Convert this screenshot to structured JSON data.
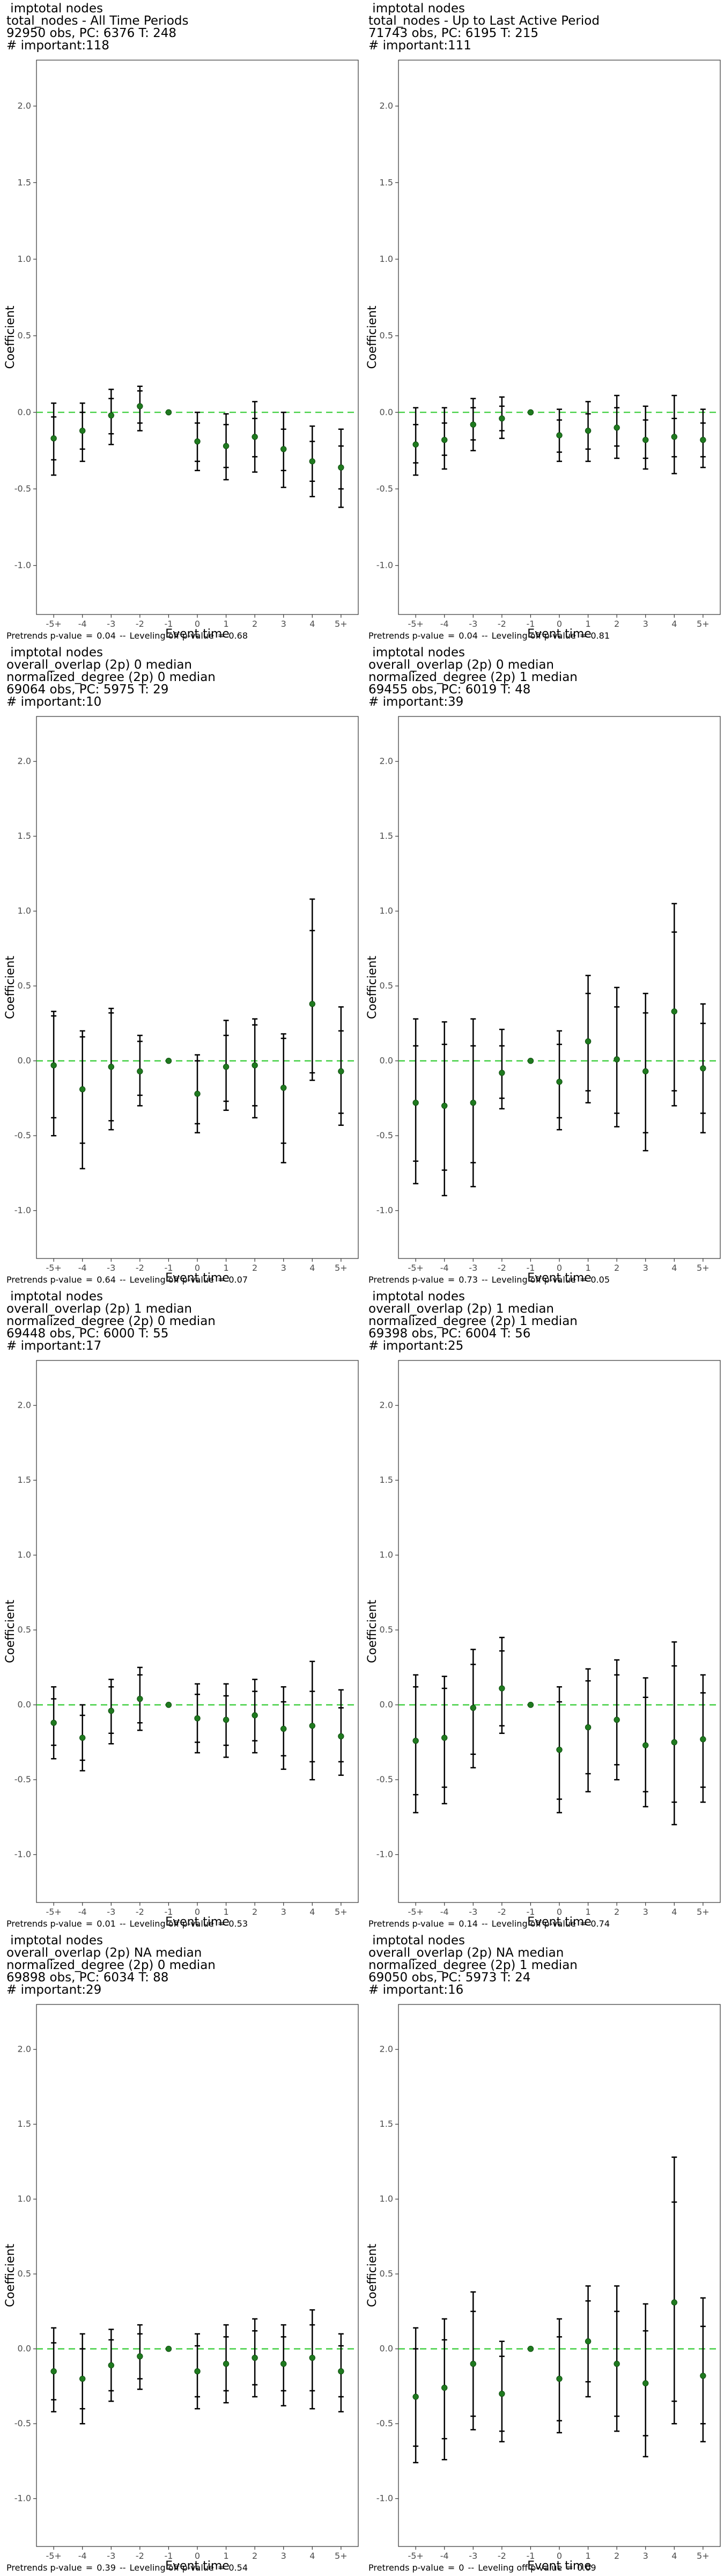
{
  "chart_data": [
    {
      "type": "scatter",
      "title_lines": [
        " imptotal nodes",
        "total_nodes - All Time Periods",
        "92950 obs, PC: 6376 T: 248",
        "# important:118"
      ],
      "xlabel": "Event time",
      "ylabel": "Coefficient",
      "categories": [
        "-5+",
        "-4",
        "-3",
        "-2",
        "-1",
        "0",
        "1",
        "2",
        "3",
        "4",
        "5+"
      ],
      "yticks": [
        "-1.0",
        "-0.5",
        "0.0",
        "0.5",
        "1.0",
        "1.5",
        "2.0"
      ],
      "ylim": [
        -1.32,
        2.3
      ],
      "reference_line_y": 0,
      "estimates": [
        -0.17,
        -0.12,
        -0.02,
        0.04,
        0.0,
        -0.19,
        -0.22,
        -0.16,
        -0.24,
        -0.32,
        -0.36
      ],
      "ci_inner": [
        [
          -0.31,
          -0.03
        ],
        [
          -0.24,
          0.0
        ],
        [
          -0.14,
          0.09
        ],
        [
          -0.07,
          0.14
        ],
        [
          0.0,
          0.0
        ],
        [
          -0.32,
          -0.07
        ],
        [
          -0.36,
          -0.08
        ],
        [
          -0.29,
          -0.04
        ],
        [
          -0.38,
          -0.11
        ],
        [
          -0.45,
          -0.19
        ],
        [
          -0.5,
          -0.22
        ]
      ],
      "ci_outer": [
        [
          -0.41,
          0.06
        ],
        [
          -0.32,
          0.06
        ],
        [
          -0.21,
          0.15
        ],
        [
          -0.12,
          0.17
        ],
        [
          0.0,
          0.0
        ],
        [
          -0.38,
          0.0
        ],
        [
          -0.44,
          -0.01
        ],
        [
          -0.39,
          0.07
        ],
        [
          -0.49,
          0.0
        ],
        [
          -0.55,
          -0.09
        ],
        [
          -0.62,
          -0.11
        ]
      ],
      "footer": {
        "pretrends_label": "Pretrends p-value",
        "pretrends_value": "0.04",
        "leveling_label": "Leveling off p-value",
        "leveling_value": "0.68"
      }
    },
    {
      "type": "scatter",
      "title_lines": [
        " imptotal nodes",
        "total_nodes - Up to Last Active Period",
        "71743 obs, PC: 6195 T: 215",
        "# important:111"
      ],
      "xlabel": "Event time",
      "ylabel": "Coefficient",
      "categories": [
        "-5+",
        "-4",
        "-3",
        "-2",
        "-1",
        "0",
        "1",
        "2",
        "3",
        "4",
        "5+"
      ],
      "yticks": [
        "-1.0",
        "-0.5",
        "0.0",
        "0.5",
        "1.0",
        "1.5",
        "2.0"
      ],
      "ylim": [
        -1.32,
        2.3
      ],
      "reference_line_y": 0,
      "estimates": [
        -0.21,
        -0.18,
        -0.08,
        -0.04,
        0.0,
        -0.15,
        -0.12,
        -0.1,
        -0.18,
        -0.16,
        -0.18
      ],
      "ci_inner": [
        [
          -0.33,
          -0.08
        ],
        [
          -0.28,
          -0.07
        ],
        [
          -0.18,
          0.03
        ],
        [
          -0.12,
          0.04
        ],
        [
          0.0,
          0.0
        ],
        [
          -0.26,
          -0.05
        ],
        [
          -0.24,
          -0.01
        ],
        [
          -0.22,
          0.03
        ],
        [
          -0.3,
          -0.05
        ],
        [
          -0.29,
          -0.04
        ],
        [
          -0.29,
          -0.07
        ]
      ],
      "ci_outer": [
        [
          -0.41,
          0.03
        ],
        [
          -0.37,
          0.03
        ],
        [
          -0.25,
          0.09
        ],
        [
          -0.17,
          0.1
        ],
        [
          0.0,
          0.0
        ],
        [
          -0.32,
          0.02
        ],
        [
          -0.32,
          0.07
        ],
        [
          -0.3,
          0.11
        ],
        [
          -0.37,
          0.04
        ],
        [
          -0.4,
          0.11
        ],
        [
          -0.36,
          0.02
        ]
      ],
      "footer": {
        "pretrends_label": "Pretrends p-value",
        "pretrends_value": "0.04",
        "leveling_label": "Leveling off p-value",
        "leveling_value": "0.81"
      }
    },
    {
      "type": "scatter",
      "title_lines": [
        " imptotal nodes",
        "overall_overlap (2p) 0 median",
        "normalized_degree (2p) 0 median",
        "69064 obs, PC: 5975 T: 29",
        "# important:10"
      ],
      "xlabel": "Event time",
      "ylabel": "Coefficient",
      "categories": [
        "-5+",
        "-4",
        "-3",
        "-2",
        "-1",
        "0",
        "1",
        "2",
        "3",
        "4",
        "5+"
      ],
      "yticks": [
        "-1.0",
        "-0.5",
        "0.0",
        "0.5",
        "1.0",
        "1.5",
        "2.0"
      ],
      "ylim": [
        -1.32,
        2.3
      ],
      "reference_line_y": 0,
      "estimates": [
        -0.03,
        -0.19,
        -0.04,
        -0.07,
        0.0,
        -0.22,
        -0.04,
        -0.03,
        -0.18,
        0.38,
        -0.07
      ],
      "ci_inner": [
        [
          -0.38,
          0.3
        ],
        [
          -0.55,
          0.16
        ],
        [
          -0.4,
          0.32
        ],
        [
          -0.23,
          0.13
        ],
        [
          0.0,
          0.0
        ],
        [
          -0.42,
          0.0
        ],
        [
          -0.27,
          0.17
        ],
        [
          -0.3,
          0.24
        ],
        [
          -0.55,
          0.15
        ],
        [
          -0.08,
          0.87
        ],
        [
          -0.35,
          0.2
        ]
      ],
      "ci_outer": [
        [
          -0.5,
          0.33
        ],
        [
          -0.72,
          0.2
        ],
        [
          -0.46,
          0.35
        ],
        [
          -0.3,
          0.17
        ],
        [
          0.0,
          0.0
        ],
        [
          -0.48,
          0.04
        ],
        [
          -0.33,
          0.27
        ],
        [
          -0.38,
          0.28
        ],
        [
          -0.68,
          0.18
        ],
        [
          -0.13,
          1.08
        ],
        [
          -0.43,
          0.36
        ]
      ],
      "footer": {
        "pretrends_label": "Pretrends p-value",
        "pretrends_value": "0.64",
        "leveling_label": "Leveling off p-value",
        "leveling_value": "0.07"
      }
    },
    {
      "type": "scatter",
      "title_lines": [
        " imptotal nodes",
        "overall_overlap (2p) 0 median",
        "normalized_degree (2p) 1 median",
        "69455 obs, PC: 6019 T: 48",
        "# important:39"
      ],
      "xlabel": "Event time",
      "ylabel": "Coefficient",
      "categories": [
        "-5+",
        "-4",
        "-3",
        "-2",
        "-1",
        "0",
        "1",
        "2",
        "3",
        "4",
        "5+"
      ],
      "yticks": [
        "-1.0",
        "-0.5",
        "0.0",
        "0.5",
        "1.0",
        "1.5",
        "2.0"
      ],
      "ylim": [
        -1.32,
        2.3
      ],
      "reference_line_y": 0,
      "estimates": [
        -0.28,
        -0.3,
        -0.28,
        -0.08,
        0.0,
        -0.14,
        0.13,
        0.01,
        -0.07,
        0.33,
        -0.05
      ],
      "ci_inner": [
        [
          -0.67,
          0.1
        ],
        [
          -0.73,
          0.11
        ],
        [
          -0.68,
          0.1
        ],
        [
          -0.25,
          0.1
        ],
        [
          0.0,
          0.0
        ],
        [
          -0.38,
          0.11
        ],
        [
          -0.2,
          0.45
        ],
        [
          -0.35,
          0.36
        ],
        [
          -0.48,
          0.32
        ],
        [
          -0.2,
          0.86
        ],
        [
          -0.35,
          0.25
        ]
      ],
      "ci_outer": [
        [
          -0.82,
          0.28
        ],
        [
          -0.9,
          0.26
        ],
        [
          -0.84,
          0.28
        ],
        [
          -0.32,
          0.21
        ],
        [
          0.0,
          0.0
        ],
        [
          -0.46,
          0.2
        ],
        [
          -0.28,
          0.57
        ],
        [
          -0.44,
          0.49
        ],
        [
          -0.6,
          0.45
        ],
        [
          -0.3,
          1.05
        ],
        [
          -0.48,
          0.38
        ]
      ],
      "footer": {
        "pretrends_label": "Pretrends p-value",
        "pretrends_value": "0.73",
        "leveling_label": "Leveling off p-value",
        "leveling_value": "0.05"
      }
    },
    {
      "type": "scatter",
      "title_lines": [
        " imptotal nodes",
        "overall_overlap (2p) 1 median",
        "normalized_degree (2p) 0 median",
        "69448 obs, PC: 6000 T: 55",
        "# important:17"
      ],
      "xlabel": "Event time",
      "ylabel": "Coefficient",
      "categories": [
        "-5+",
        "-4",
        "-3",
        "-2",
        "-1",
        "0",
        "1",
        "2",
        "3",
        "4",
        "5+"
      ],
      "yticks": [
        "-1.0",
        "-0.5",
        "0.0",
        "0.5",
        "1.0",
        "1.5",
        "2.0"
      ],
      "ylim": [
        -1.32,
        2.3
      ],
      "reference_line_y": 0,
      "estimates": [
        -0.12,
        -0.22,
        -0.04,
        0.04,
        0.0,
        -0.09,
        -0.1,
        -0.07,
        -0.16,
        -0.14,
        -0.21
      ],
      "ci_inner": [
        [
          -0.27,
          0.04
        ],
        [
          -0.37,
          -0.07
        ],
        [
          -0.19,
          0.12
        ],
        [
          -0.12,
          0.2
        ],
        [
          0.0,
          0.0
        ],
        [
          -0.25,
          0.07
        ],
        [
          -0.27,
          0.06
        ],
        [
          -0.24,
          0.09
        ],
        [
          -0.34,
          0.02
        ],
        [
          -0.38,
          0.09
        ],
        [
          -0.38,
          -0.02
        ]
      ],
      "ci_outer": [
        [
          -0.36,
          0.12
        ],
        [
          -0.44,
          0.0
        ],
        [
          -0.26,
          0.17
        ],
        [
          -0.17,
          0.25
        ],
        [
          0.0,
          0.0
        ],
        [
          -0.32,
          0.14
        ],
        [
          -0.35,
          0.14
        ],
        [
          -0.32,
          0.17
        ],
        [
          -0.43,
          0.12
        ],
        [
          -0.5,
          0.29
        ],
        [
          -0.47,
          0.1
        ]
      ],
      "footer": {
        "pretrends_label": "Pretrends p-value",
        "pretrends_value": "0.01",
        "leveling_label": "Leveling off p-value",
        "leveling_value": "0.53"
      }
    },
    {
      "type": "scatter",
      "title_lines": [
        " imptotal nodes",
        "overall_overlap (2p) 1 median",
        "normalized_degree (2p) 1 median",
        "69398 obs, PC: 6004 T: 56",
        "# important:25"
      ],
      "xlabel": "Event time",
      "ylabel": "Coefficient",
      "categories": [
        "-5+",
        "-4",
        "-3",
        "-2",
        "-1",
        "0",
        "1",
        "2",
        "3",
        "4",
        "5+"
      ],
      "yticks": [
        "-1.0",
        "-0.5",
        "0.0",
        "0.5",
        "1.0",
        "1.5",
        "2.0"
      ],
      "ylim": [
        -1.32,
        2.3
      ],
      "reference_line_y": 0,
      "estimates": [
        -0.24,
        -0.22,
        -0.02,
        0.11,
        0.0,
        -0.3,
        -0.15,
        -0.1,
        -0.27,
        -0.25,
        -0.23
      ],
      "ci_inner": [
        [
          -0.6,
          0.12
        ],
        [
          -0.55,
          0.11
        ],
        [
          -0.33,
          0.27
        ],
        [
          -0.14,
          0.36
        ],
        [
          0.0,
          0.0
        ],
        [
          -0.63,
          0.02
        ],
        [
          -0.46,
          0.16
        ],
        [
          -0.4,
          0.2
        ],
        [
          -0.58,
          0.05
        ],
        [
          -0.65,
          0.26
        ],
        [
          -0.55,
          0.08
        ]
      ],
      "ci_outer": [
        [
          -0.72,
          0.2
        ],
        [
          -0.66,
          0.19
        ],
        [
          -0.42,
          0.37
        ],
        [
          -0.19,
          0.45
        ],
        [
          0.0,
          0.0
        ],
        [
          -0.72,
          0.12
        ],
        [
          -0.58,
          0.24
        ],
        [
          -0.5,
          0.3
        ],
        [
          -0.68,
          0.18
        ],
        [
          -0.8,
          0.42
        ],
        [
          -0.65,
          0.2
        ]
      ],
      "footer": {
        "pretrends_label": "Pretrends p-value",
        "pretrends_value": "0.14",
        "leveling_label": "Leveling off p-value",
        "leveling_value": "0.74"
      }
    },
    {
      "type": "scatter",
      "title_lines": [
        " imptotal nodes",
        "overall_overlap (2p) NA median",
        "normalized_degree (2p) 0 median",
        "69898 obs, PC: 6034 T: 88",
        "# important:29"
      ],
      "xlabel": "Event time",
      "ylabel": "Coefficient",
      "categories": [
        "-5+",
        "-4",
        "-3",
        "-2",
        "-1",
        "0",
        "1",
        "2",
        "3",
        "4",
        "5+"
      ],
      "yticks": [
        "-1.0",
        "-0.5",
        "0.0",
        "0.5",
        "1.0",
        "1.5",
        "2.0"
      ],
      "ylim": [
        -1.32,
        2.3
      ],
      "reference_line_y": 0,
      "estimates": [
        -0.15,
        -0.2,
        -0.11,
        -0.05,
        0.0,
        -0.15,
        -0.1,
        -0.06,
        -0.1,
        -0.06,
        -0.15
      ],
      "ci_inner": [
        [
          -0.34,
          0.04
        ],
        [
          -0.4,
          0.0
        ],
        [
          -0.28,
          0.06
        ],
        [
          -0.2,
          0.1
        ],
        [
          0.0,
          0.0
        ],
        [
          -0.32,
          0.02
        ],
        [
          -0.28,
          0.08
        ],
        [
          -0.24,
          0.12
        ],
        [
          -0.28,
          0.08
        ],
        [
          -0.28,
          0.16
        ],
        [
          -0.32,
          0.02
        ]
      ],
      "ci_outer": [
        [
          -0.42,
          0.14
        ],
        [
          -0.5,
          0.1
        ],
        [
          -0.35,
          0.13
        ],
        [
          -0.27,
          0.16
        ],
        [
          0.0,
          0.0
        ],
        [
          -0.4,
          0.1
        ],
        [
          -0.36,
          0.16
        ],
        [
          -0.32,
          0.2
        ],
        [
          -0.38,
          0.16
        ],
        [
          -0.4,
          0.26
        ],
        [
          -0.42,
          0.1
        ]
      ],
      "footer": {
        "pretrends_label": "Pretrends p-value",
        "pretrends_value": "0.39",
        "leveling_label": "Leveling off p-value",
        "leveling_value": "0.54"
      }
    },
    {
      "type": "scatter",
      "title_lines": [
        " imptotal nodes",
        "overall_overlap (2p) NA median",
        "normalized_degree (2p) 1 median",
        "69050 obs, PC: 5973 T: 24",
        "# important:16"
      ],
      "xlabel": "Event time",
      "ylabel": "Coefficient",
      "categories": [
        "-5+",
        "-4",
        "-3",
        "-2",
        "-1",
        "0",
        "1",
        "2",
        "3",
        "4",
        "5+"
      ],
      "yticks": [
        "-1.0",
        "-0.5",
        "0.0",
        "0.5",
        "1.0",
        "1.5",
        "2.0"
      ],
      "ylim": [
        -1.32,
        2.3
      ],
      "reference_line_y": 0,
      "estimates": [
        -0.32,
        -0.26,
        -0.1,
        -0.3,
        0.0,
        -0.2,
        0.05,
        -0.1,
        -0.23,
        0.31,
        -0.18
      ],
      "ci_inner": [
        [
          -0.65,
          0.0
        ],
        [
          -0.6,
          0.06
        ],
        [
          -0.45,
          0.25
        ],
        [
          -0.55,
          -0.05
        ],
        [
          0.0,
          0.0
        ],
        [
          -0.48,
          0.08
        ],
        [
          -0.22,
          0.32
        ],
        [
          -0.45,
          0.25
        ],
        [
          -0.58,
          0.12
        ],
        [
          -0.35,
          0.98
        ],
        [
          -0.5,
          0.15
        ]
      ],
      "ci_outer": [
        [
          -0.76,
          0.14
        ],
        [
          -0.74,
          0.2
        ],
        [
          -0.54,
          0.38
        ],
        [
          -0.62,
          0.05
        ],
        [
          0.0,
          0.0
        ],
        [
          -0.56,
          0.2
        ],
        [
          -0.32,
          0.42
        ],
        [
          -0.55,
          0.42
        ],
        [
          -0.72,
          0.3
        ],
        [
          -0.5,
          1.28
        ],
        [
          -0.62,
          0.34
        ]
      ],
      "footer": {
        "pretrends_label": "Pretrends p-value",
        "pretrends_value": "0",
        "leveling_label": "Leveling off p-value",
        "leveling_value": "0.09"
      }
    }
  ],
  "colors": {
    "point": "#1f7a1f",
    "zero_line": "#33cc33",
    "error_bar": "#000000",
    "axis_text": "#4d4d4d",
    "panel_border": "#333333"
  }
}
